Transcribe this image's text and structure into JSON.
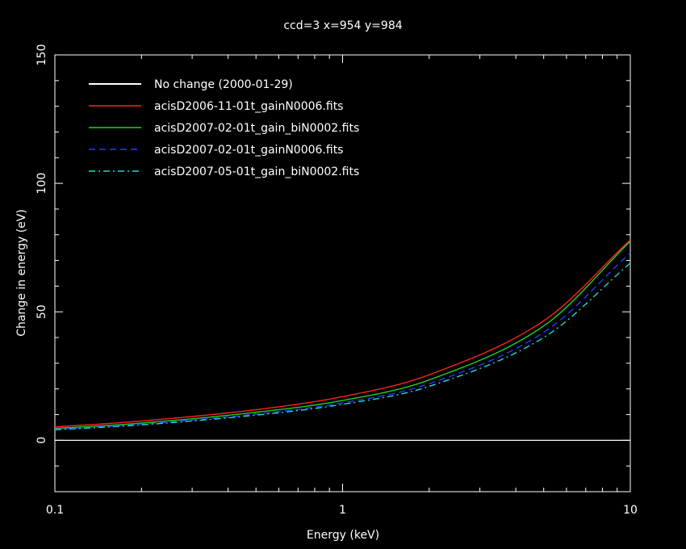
{
  "chart_data": {
    "type": "line",
    "title": "ccd=3 x=954 y=984",
    "xlabel": "Energy (keV)",
    "ylabel": "Change in energy (eV)",
    "x_scale": "log",
    "xlim": [
      0.1,
      10
    ],
    "ylim": [
      -20,
      150
    ],
    "x_ticks": [
      0.1,
      1,
      10
    ],
    "x_tick_labels": [
      "0.1",
      "1",
      "10"
    ],
    "y_ticks": [
      0,
      50,
      100,
      150
    ],
    "y_tick_labels": [
      "0",
      "50",
      "100",
      "150"
    ],
    "grid": false,
    "legend_placement": "top-left",
    "x": [
      0.1,
      0.2,
      0.5,
      1,
      2,
      5,
      10
    ],
    "series": [
      {
        "name": "No change (2000-01-29)",
        "color": "#ffffff",
        "dash": "solid",
        "values": [
          0,
          0,
          0,
          0,
          0,
          0,
          0
        ]
      },
      {
        "name": "acisD2006-11-01t_gainN0006.fits",
        "color": "#ff2020",
        "dash": "solid",
        "values": [
          5.2,
          7.5,
          11.9,
          17.0,
          25.5,
          46.5,
          78.0
        ]
      },
      {
        "name": "acisD2007-02-01t_gain_biN0002.fits",
        "color": "#20d020",
        "dash": "solid",
        "values": [
          4.6,
          6.7,
          10.9,
          15.5,
          23.5,
          44.5,
          77.5
        ]
      },
      {
        "name": "acisD2007-02-01t_gainN0006.fits",
        "color": "#2040ff",
        "dash": "dashed",
        "values": [
          4.3,
          6.3,
          10.2,
          14.6,
          22.0,
          42.0,
          73.0
        ]
      },
      {
        "name": "acisD2007-05-01t_gain_biN0002.fits",
        "color": "#20d8d8",
        "dash": "dashdot",
        "values": [
          4.1,
          6.0,
          9.8,
          14.0,
          21.0,
          40.0,
          69.0
        ]
      }
    ]
  }
}
